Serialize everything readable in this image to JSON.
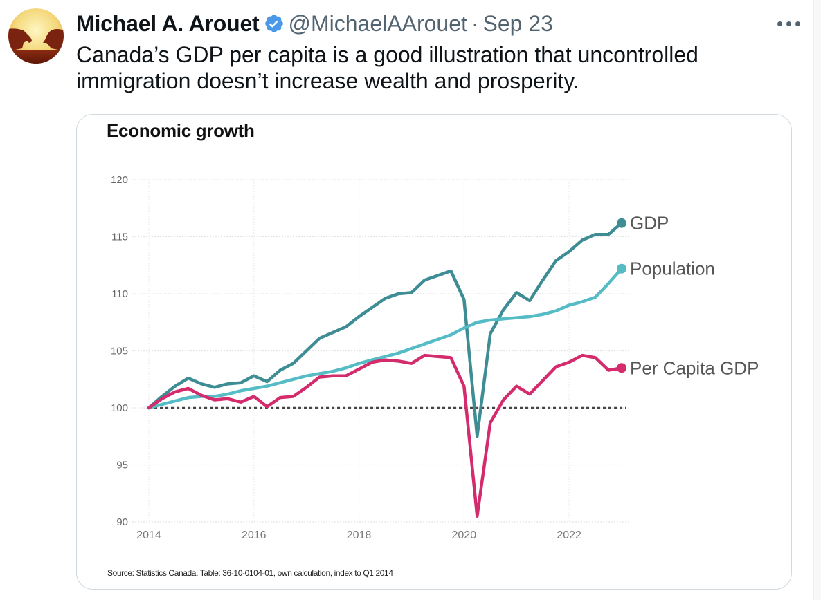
{
  "tweet": {
    "author_name": "Michael A. Arouet",
    "verified": true,
    "handle": "@MichaelAArouet",
    "separator": "·",
    "date": "Sep 23",
    "more_icon": "more-horizontal-icon",
    "text": "Canada’s GDP per capita is a good illustration that uncontrolled immigration doesn’t increase wealth and prosperity.",
    "avatar_icon": "bull-and-bear-avatar"
  },
  "colors": {
    "gdp": "#3f8d94",
    "population": "#55bcc6",
    "per_capita": "#d42b6c",
    "verified": "#4a99e9",
    "baseline": "#444444"
  },
  "chart_data": {
    "type": "line",
    "title": "Economic growth",
    "source": "Source: Statistics Canada, Table: 36-10-0104-01, own calculation, index to Q1 2014",
    "xlabel": "",
    "ylabel": "",
    "x_unit": "quarter",
    "x_start": "2014 Q1",
    "x_end": "2023 Q1",
    "xlim": [
      2014,
      2023
    ],
    "ylim": [
      90,
      120
    ],
    "yticks": [
      90,
      95,
      100,
      105,
      110,
      115,
      120
    ],
    "xticks": [
      "2014",
      "2016",
      "2018",
      "2020",
      "2022"
    ],
    "xtick_values": [
      2014,
      2016,
      2018,
      2020,
      2022
    ],
    "baseline": 100,
    "grid": true,
    "legend": "inline-right",
    "series": [
      {
        "name": "GDP",
        "color_key": "gdp",
        "values": [
          100.0,
          101.0,
          101.9,
          102.6,
          102.1,
          101.8,
          102.1,
          102.2,
          102.8,
          102.3,
          103.3,
          103.9,
          105.0,
          106.1,
          106.6,
          107.1,
          108.0,
          108.8,
          109.6,
          110.0,
          110.1,
          111.2,
          111.6,
          112.0,
          109.5,
          97.5,
          106.5,
          108.6,
          110.1,
          109.4,
          111.2,
          112.9,
          113.7,
          114.7,
          115.2,
          115.2,
          116.2
        ]
      },
      {
        "name": "Population",
        "color_key": "population",
        "values": [
          100.0,
          100.3,
          100.6,
          100.9,
          101.0,
          101.0,
          101.2,
          101.5,
          101.7,
          101.9,
          102.2,
          102.5,
          102.8,
          103.0,
          103.2,
          103.5,
          103.9,
          104.2,
          104.5,
          104.8,
          105.2,
          105.6,
          106.0,
          106.4,
          107.0,
          107.5,
          107.7,
          107.8,
          107.9,
          108.0,
          108.2,
          108.5,
          109.0,
          109.3,
          109.7,
          110.9,
          112.2
        ]
      },
      {
        "name": "Per Capita GDP",
        "color_key": "per_capita",
        "values": [
          100.0,
          100.8,
          101.4,
          101.7,
          101.1,
          100.7,
          100.8,
          100.5,
          101.0,
          100.1,
          100.9,
          101.0,
          101.8,
          102.7,
          102.8,
          102.8,
          103.4,
          104.0,
          104.2,
          104.1,
          103.9,
          104.6,
          104.5,
          104.4,
          101.9,
          90.5,
          98.7,
          100.7,
          101.9,
          101.2,
          102.4,
          103.6,
          104.0,
          104.6,
          104.4,
          103.3,
          103.5
        ]
      }
    ]
  }
}
